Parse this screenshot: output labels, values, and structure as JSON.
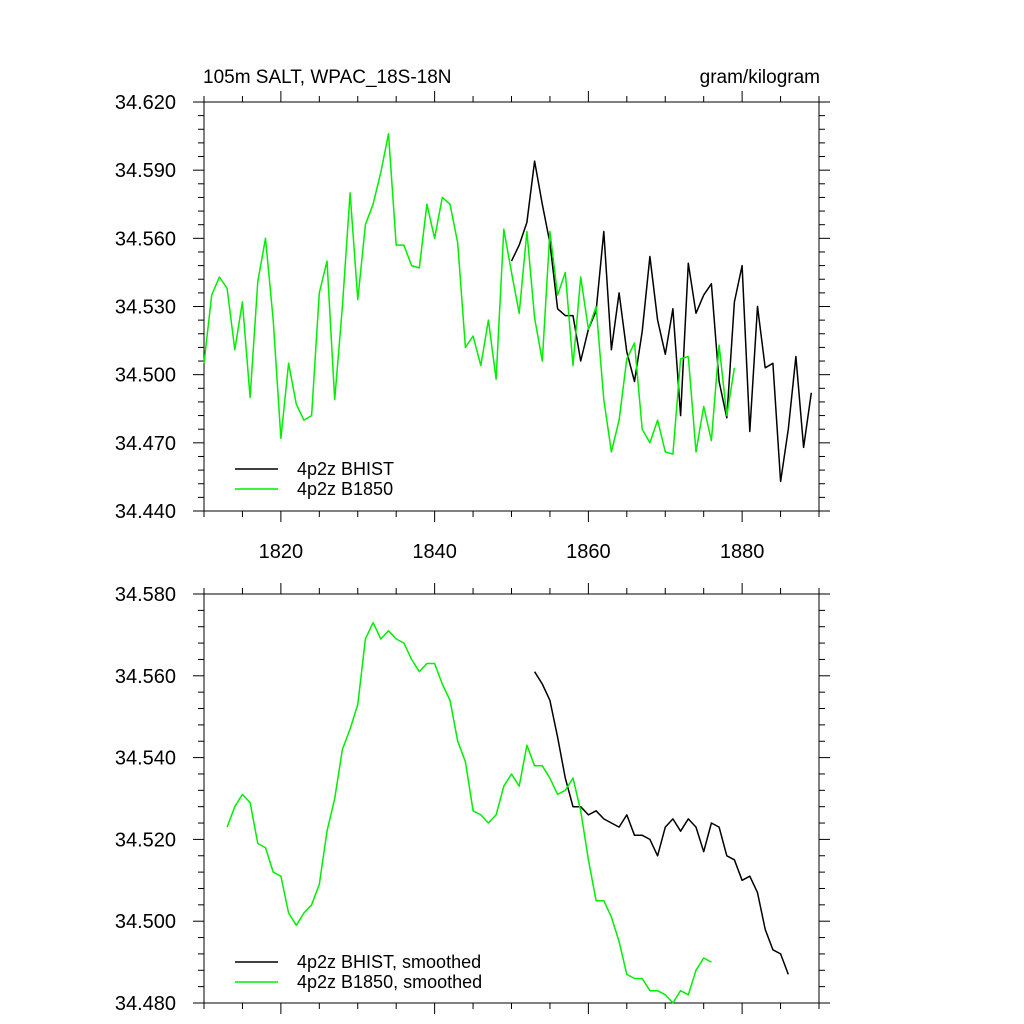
{
  "chart_data": [
    {
      "type": "line",
      "title_left": "105m SALT, WPAC_18S-18N",
      "title_right": "gram/kilogram",
      "xlabel": "",
      "ylabel": "",
      "xlim": [
        1810,
        1890
      ],
      "ylim": [
        34.44,
        34.62
      ],
      "xticks": [
        1820,
        1840,
        1860,
        1880
      ],
      "yticks": [
        34.44,
        34.47,
        34.5,
        34.53,
        34.56,
        34.59,
        34.62
      ],
      "ytick_labels": [
        "34.440",
        "34.470",
        "34.500",
        "34.530",
        "34.560",
        "34.590",
        "34.620"
      ],
      "legend_position": "bottom-left",
      "series": [
        {
          "name": "4p2z BHIST",
          "color": "#000000",
          "x0": 1850,
          "values": [
            34.55,
            34.557,
            34.567,
            34.594,
            34.575,
            34.558,
            34.529,
            34.526,
            34.526,
            34.506,
            34.52,
            34.528,
            34.563,
            34.511,
            34.536,
            34.51,
            34.497,
            34.519,
            34.552,
            34.524,
            34.509,
            34.529,
            34.482,
            34.549,
            34.527,
            34.535,
            34.54,
            34.497,
            34.481,
            34.532,
            34.548,
            34.475,
            34.53,
            34.503,
            34.505,
            34.453,
            34.476,
            34.508,
            34.468,
            34.492
          ]
        },
        {
          "name": "4p2z B1850",
          "color": "#00ee00",
          "x0": 1810,
          "values": [
            34.505,
            34.535,
            34.543,
            34.538,
            34.511,
            34.532,
            34.49,
            34.541,
            34.56,
            34.524,
            34.472,
            34.505,
            34.487,
            34.48,
            34.482,
            34.536,
            34.55,
            34.489,
            34.53,
            34.58,
            34.533,
            34.566,
            34.575,
            34.589,
            34.606,
            34.557,
            34.557,
            34.548,
            34.547,
            34.575,
            34.56,
            34.578,
            34.575,
            34.558,
            34.512,
            34.517,
            34.504,
            34.524,
            34.498,
            34.564,
            34.545,
            34.527,
            34.563,
            34.525,
            34.506,
            34.563,
            34.535,
            34.545,
            34.504,
            34.543,
            34.52,
            34.53,
            34.489,
            34.466,
            34.48,
            34.507,
            34.514,
            34.476,
            34.47,
            34.48,
            34.466,
            34.465,
            34.507,
            34.508,
            34.466,
            34.486,
            34.471,
            34.513,
            34.482,
            34.503
          ]
        }
      ]
    },
    {
      "type": "line",
      "xlabel": "",
      "ylabel": "",
      "xlim": [
        1810,
        1890
      ],
      "ylim": [
        34.48,
        34.58
      ],
      "xticks": [
        1820,
        1840,
        1860,
        1880
      ],
      "yticks": [
        34.48,
        34.5,
        34.52,
        34.54,
        34.56,
        34.58
      ],
      "ytick_labels": [
        "34.480",
        "34.500",
        "34.520",
        "34.540",
        "34.560",
        "34.580"
      ],
      "legend_position": "bottom-left",
      "series": [
        {
          "name": "4p2z BHIST, smoothed",
          "color": "#000000",
          "x0": 1853,
          "values": [
            34.561,
            34.558,
            34.554,
            34.545,
            34.535,
            34.528,
            34.528,
            34.526,
            34.527,
            34.525,
            34.524,
            34.523,
            34.526,
            34.521,
            34.521,
            34.52,
            34.516,
            34.523,
            34.525,
            34.522,
            34.525,
            34.523,
            34.517,
            34.524,
            34.523,
            34.516,
            34.515,
            34.51,
            34.511,
            34.507,
            34.498,
            34.493,
            34.492,
            34.487
          ]
        },
        {
          "name": "4p2z B1850, smoothed",
          "color": "#00ee00",
          "x0": 1813,
          "values": [
            34.523,
            34.528,
            34.531,
            34.529,
            34.519,
            34.518,
            34.512,
            34.511,
            34.502,
            34.499,
            34.502,
            34.504,
            34.509,
            34.522,
            34.53,
            34.542,
            34.547,
            34.553,
            34.569,
            34.573,
            34.569,
            34.571,
            34.569,
            34.568,
            34.564,
            34.561,
            34.563,
            34.563,
            34.558,
            34.554,
            34.544,
            34.539,
            34.527,
            34.526,
            34.524,
            34.526,
            34.533,
            34.536,
            34.533,
            34.543,
            34.538,
            34.538,
            34.535,
            34.531,
            34.532,
            34.535,
            34.527,
            34.515,
            34.505,
            34.505,
            34.501,
            34.495,
            34.487,
            34.486,
            34.486,
            34.483,
            34.483,
            34.482,
            34.48,
            34.483,
            34.482,
            34.488,
            34.491,
            34.49
          ]
        }
      ]
    }
  ]
}
